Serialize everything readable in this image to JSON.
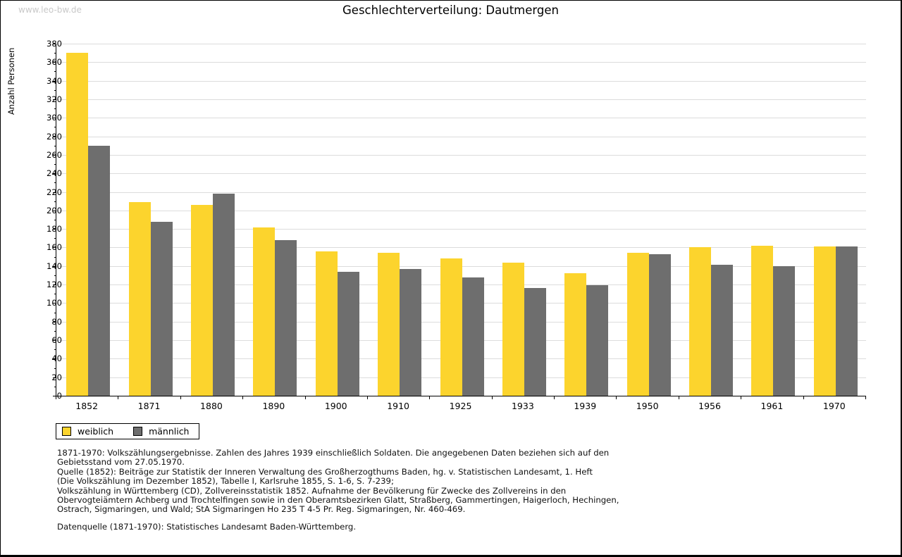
{
  "page": {
    "watermark": "www.leo-bw.de",
    "title": "Geschlechterverteilung: Dautmergen"
  },
  "chart_data": {
    "type": "bar",
    "title": "Geschlechterverteilung: Dautmergen",
    "xlabel": "",
    "ylabel": "Anzahl Personen",
    "categories": [
      "1852",
      "1871",
      "1880",
      "1890",
      "1900",
      "1910",
      "1925",
      "1933",
      "1939",
      "1950",
      "1956",
      "1961",
      "1970"
    ],
    "series": [
      {
        "name": "weiblich",
        "color": "#FCD42D",
        "values": [
          370,
          209,
          206,
          182,
          156,
          154,
          148,
          144,
          132,
          154,
          160,
          162,
          161
        ]
      },
      {
        "name": "männlich",
        "color": "#6E6E6E",
        "values": [
          270,
          188,
          218,
          168,
          134,
          137,
          128,
          116,
          119,
          153,
          141,
          140,
          161
        ]
      }
    ],
    "ylim": [
      0,
      380
    ],
    "ytick_step": 20,
    "ytick_minor_step": 10,
    "grid": true,
    "gridline_color": "#dcdcdc",
    "legend_position": "bottom-left"
  },
  "footer": {
    "lines": [
      "1871-1970: Volkszählungsergebnisse. Zahlen des Jahres 1939 einschließlich Soldaten. Die angegebenen Daten beziehen sich auf den",
      "Gebietsstand vom 27.05.1970.",
      "Quelle (1852): Beiträge zur Statistik der Inneren Verwaltung des Großherzogthums Baden, hg. v. Statistischen Landesamt, 1. Heft",
      "(Die Volkszählung im Dezember 1852), Tabelle I, Karlsruhe 1855, S. 1-6, S. 7-239;",
      "Volkszählung in Württemberg (CD), Zollvereinsstatistik 1852. Aufnahme der Bevölkerung für Zwecke des Zollvereins in den",
      "Obervogteiämtern Achberg und Trochtelfingen sowie in den Oberamtsbezirken Glatt, Straßberg, Gammertingen, Haigerloch, Hechingen,",
      "Ostrach, Sigmaringen, und Wald; StA Sigmaringen Ho 235 T 4-5 Pr. Reg. Sigmaringen, Nr. 460-469."
    ],
    "datasource": "Datenquelle (1871-1970): Statistisches Landesamt Baden-Württemberg."
  }
}
